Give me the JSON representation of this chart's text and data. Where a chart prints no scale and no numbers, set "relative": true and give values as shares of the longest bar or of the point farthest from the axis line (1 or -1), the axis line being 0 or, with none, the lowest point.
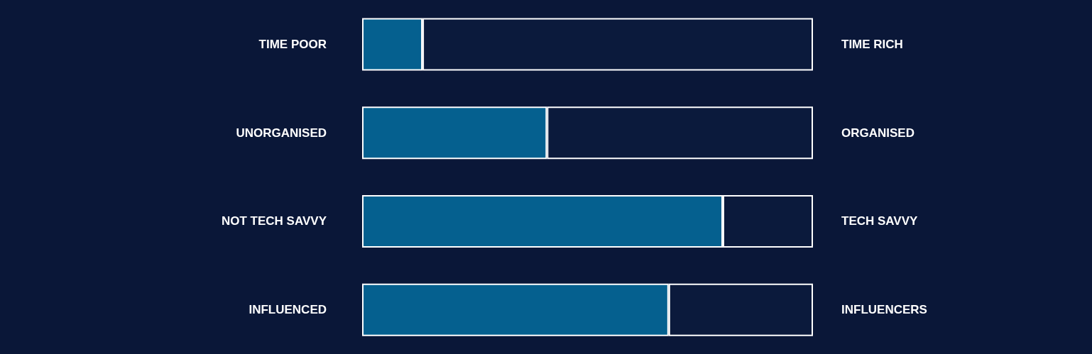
{
  "chart_data": {
    "type": "bar",
    "orientation": "horizontal",
    "stacked": true,
    "relative": true,
    "categories": [
      "TIME POOR",
      "UNORGANISED",
      "NOT TECH SAVVY",
      "INFLUENCED"
    ],
    "y2_categories": [
      "TIME RICH",
      "ORGANISED",
      "TECH SAVVY",
      "INFLUENCERS"
    ],
    "series": [
      {
        "color": "#05608f",
        "values": [
          0.134,
          0.41,
          0.8,
          0.68
        ]
      },
      {
        "color": "#0b1a3c",
        "values": [
          0.866,
          0.59,
          0.2,
          0.32
        ]
      }
    ]
  }
}
